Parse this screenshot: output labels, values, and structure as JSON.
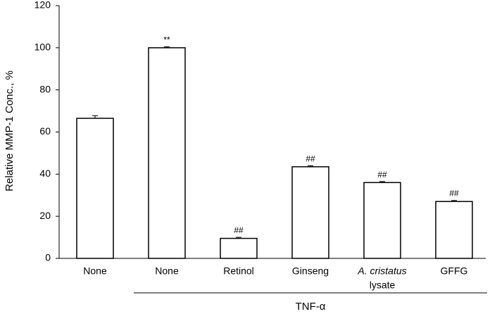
{
  "chart_data": {
    "type": "bar",
    "categories": [
      "None",
      "None",
      "Retinol",
      "Ginseng",
      "A. cristatus lysate",
      "GFFG"
    ],
    "category_lines": [
      [
        {
          "text": "None",
          "italic": false
        }
      ],
      [
        {
          "text": "None",
          "italic": false
        }
      ],
      [
        {
          "text": "Retinol",
          "italic": false
        }
      ],
      [
        {
          "text": "Ginseng",
          "italic": false
        }
      ],
      [
        {
          "text": "A. cristatus",
          "italic": true
        },
        {
          "text": "lysate",
          "italic": false
        }
      ],
      [
        {
          "text": "GFFG",
          "italic": false
        }
      ]
    ],
    "values": [
      66.5,
      100,
      9.5,
      43.5,
      36,
      27
    ],
    "errors": [
      1.2,
      0.5,
      0.5,
      0.5,
      0.5,
      0.5
    ],
    "annotations": [
      "",
      "**",
      "##",
      "##",
      "##",
      "##"
    ],
    "title": "",
    "xlabel": "",
    "ylabel": "Relative MMP-1 Conc., %",
    "ylim": [
      0,
      120
    ],
    "yticks": [
      0,
      20,
      40,
      60,
      80,
      100,
      120
    ],
    "grid": false,
    "group_label": "TNF-α",
    "group_categories": [
      1,
      2,
      3,
      4,
      5
    ]
  }
}
